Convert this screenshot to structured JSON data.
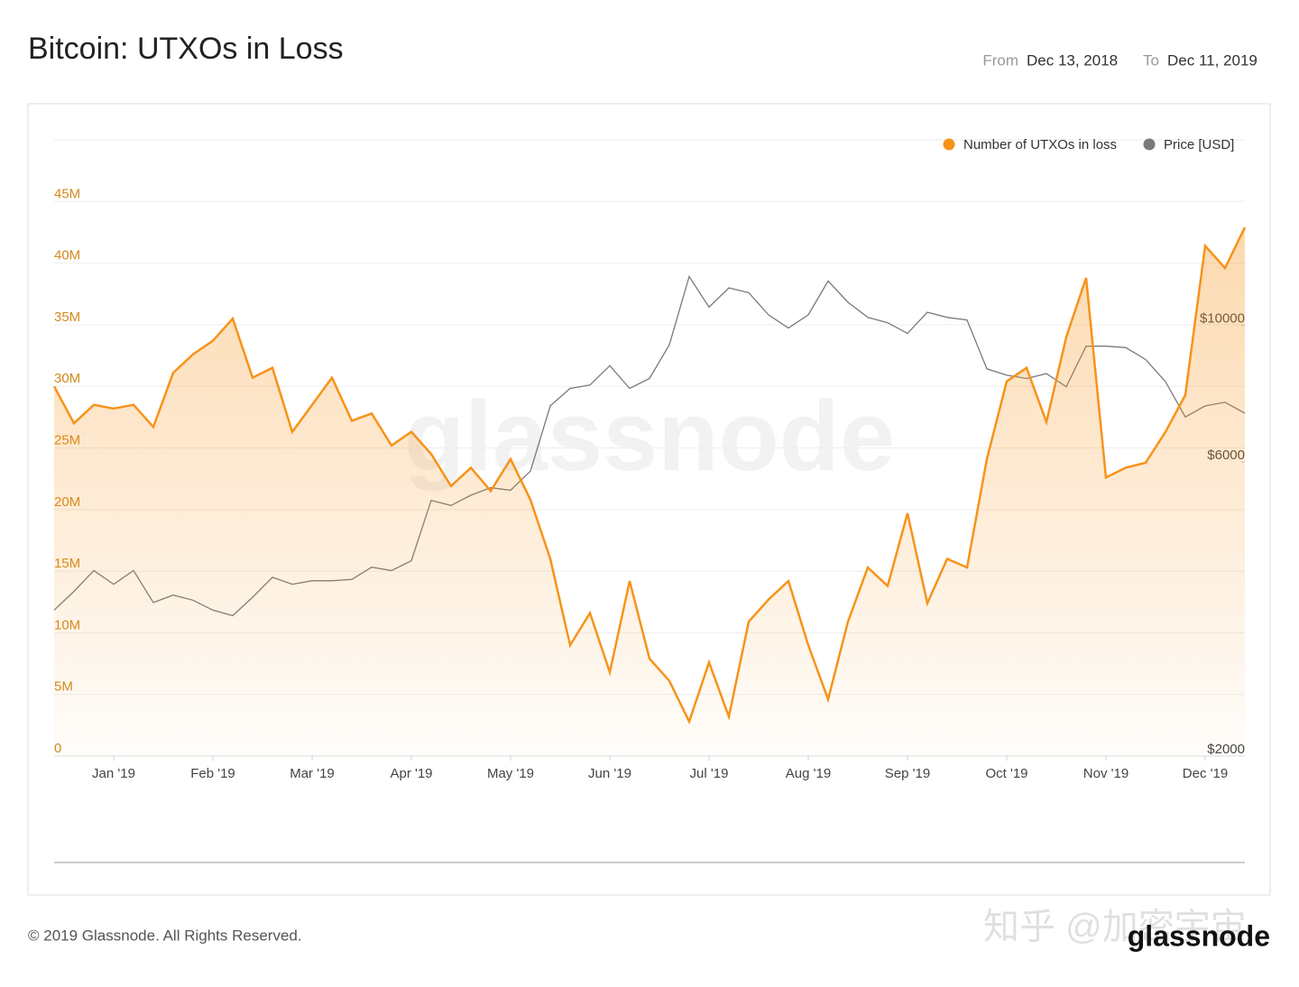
{
  "header": {
    "title": "Bitcoin: UTXOs in Loss",
    "from_label": "From",
    "from": "Dec 13, 2018",
    "to_label": "To",
    "to": "Dec 11, 2019"
  },
  "footer": {
    "copyright": "© 2019 Glassnode. All Rights Reserved.",
    "logo": "glassnode",
    "credit": "知乎 @加密宇宙"
  },
  "chart_data": {
    "type": "line",
    "watermark": "glassnode",
    "categories": [
      null,
      null,
      null,
      "Jan '19",
      null,
      null,
      null,
      null,
      "Feb '19",
      null,
      null,
      null,
      null,
      "Mar '19",
      null,
      null,
      null,
      null,
      "Apr '19",
      null,
      null,
      null,
      null,
      "May '19",
      null,
      null,
      null,
      null,
      "Jun '19",
      null,
      null,
      null,
      null,
      "Jul '19",
      null,
      null,
      null,
      null,
      "Aug '19",
      null,
      null,
      null,
      null,
      "Sep '19",
      null,
      null,
      null,
      null,
      "Oct '19",
      null,
      null,
      null,
      null,
      "Nov '19",
      null,
      null,
      null,
      null,
      "Dec '19",
      null,
      null
    ],
    "series": [
      {
        "name": "Number of UTXOs in loss",
        "color": "#f7931a",
        "area": true,
        "values": [
          30000000,
          27000000,
          28500000,
          28200000,
          28500000,
          26700000,
          31100000,
          32600000,
          33700000,
          35500000,
          30700000,
          31500000,
          26300000,
          28500000,
          30700000,
          27200000,
          27800000,
          25200000,
          26300000,
          24500000,
          21900000,
          23400000,
          21500000,
          24100000,
          20800000,
          16000000,
          9000000,
          11600000,
          6800000,
          14200000,
          7900000,
          6100000,
          2800000,
          7600000,
          3200000,
          10900000,
          12700000,
          14200000,
          9000000,
          4600000,
          10900000,
          15300000,
          13800000,
          19700000,
          12400000,
          16000000,
          15300000,
          24100000,
          30400000,
          31500000,
          27100000,
          34000000,
          38800000,
          22600000,
          23400000,
          23800000,
          26300000,
          29300000,
          41400000,
          39600000,
          42900000
        ]
      },
      {
        "name": "Price [USD]",
        "color": "#7a7a7a",
        "axis": "y2",
        "values": [
          3450,
          3700,
          4000,
          3800,
          4000,
          3550,
          3650,
          3580,
          3450,
          3380,
          3620,
          3900,
          3800,
          3850,
          3850,
          3870,
          4050,
          4000,
          4150,
          5200,
          5100,
          5300,
          5450,
          5400,
          5800,
          7400,
          7900,
          8000,
          8600,
          7900,
          8200,
          9300,
          12000,
          10700,
          11500,
          11300,
          10400,
          9900,
          10400,
          11800,
          10900,
          10300,
          10100,
          9700,
          10500,
          10300,
          10200,
          8500,
          8300,
          8200,
          8350,
          7950,
          9250,
          9250,
          9200,
          8800,
          8100,
          7100,
          7400,
          7500,
          7200
        ]
      }
    ],
    "ylim": [
      0,
      50000000
    ],
    "yticks": [
      0,
      {
        "value": 5000000,
        "label": "5M"
      },
      {
        "value": 10000000,
        "label": "10M"
      },
      {
        "value": 15000000,
        "label": "15M"
      },
      {
        "value": 20000000,
        "label": "20M"
      },
      {
        "value": 25000000,
        "label": "25M"
      },
      {
        "value": 30000000,
        "label": "30M"
      },
      {
        "value": 35000000,
        "label": "35M"
      },
      {
        "value": 40000000,
        "label": "40M"
      },
      {
        "value": 45000000,
        "label": "45M"
      }
    ],
    "y2lim": [
      2000,
      20000
    ],
    "y2log": true,
    "y2ticks": [
      {
        "value": 2000,
        "label": "$2000"
      },
      {
        "value": 6000,
        "label": "$6000"
      },
      {
        "value": 10000,
        "label": "$10000"
      }
    ],
    "grid": true,
    "legend": "top-right",
    "ytick_color": "#d4881c"
  }
}
